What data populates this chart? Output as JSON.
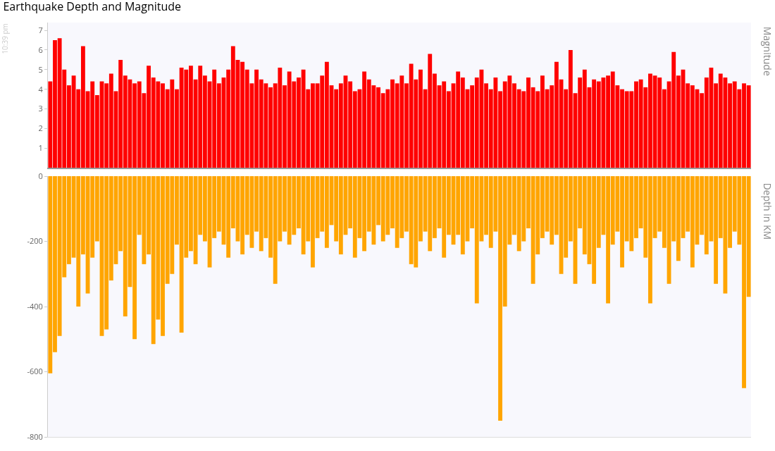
{
  "chart_data": [
    {
      "type": "bar",
      "title": "Earthquake Depth and Magnitude",
      "ylabel": "Magnitude",
      "annotations": [
        "10:39 pm"
      ],
      "tick_labels": "y",
      "grid": false,
      "categories": [
        null,
        null,
        null,
        null,
        null,
        null,
        null,
        null,
        null,
        null,
        null,
        null,
        null,
        null,
        null,
        null,
        null,
        null,
        null,
        null,
        null,
        null,
        null,
        null,
        null,
        null,
        null,
        null,
        null,
        null,
        null,
        null,
        null,
        null,
        null,
        null,
        null,
        null,
        null,
        null,
        null,
        null,
        null,
        null,
        null,
        null,
        null,
        null,
        null,
        null,
        null,
        null,
        null,
        null,
        null,
        null,
        null,
        null,
        null,
        null,
        null,
        null,
        null,
        null,
        null,
        null,
        null,
        null,
        null,
        null,
        null,
        null,
        null,
        null,
        null,
        null,
        null,
        null,
        null,
        null,
        null,
        null,
        null,
        null,
        null,
        null,
        null,
        null,
        null,
        null,
        null,
        null,
        null,
        null,
        null,
        null,
        null,
        null,
        null,
        null,
        null,
        null,
        null,
        null,
        null,
        null,
        null,
        null,
        null,
        null,
        null,
        null,
        null,
        null,
        null,
        null,
        null,
        null,
        null,
        null,
        null,
        null,
        null,
        null,
        null,
        null,
        null,
        null,
        null,
        null,
        null,
        null,
        null,
        null,
        null,
        null,
        null,
        null,
        null,
        null,
        null,
        null,
        null,
        null,
        null,
        null,
        null,
        null,
        null,
        null
      ],
      "series": [
        {
          "color": "#ff0000",
          "values": [
            4.4,
            6.5,
            6.6,
            5.0,
            4.2,
            4.7,
            4.0,
            6.2,
            3.9,
            4.4,
            3.7,
            4.4,
            4.3,
            4.8,
            3.9,
            5.5,
            4.7,
            4.5,
            4.3,
            4.4,
            3.8,
            5.2,
            4.6,
            4.4,
            4.3,
            4.0,
            4.5,
            4.0,
            5.1,
            5.0,
            5.2,
            4.5,
            5.2,
            4.7,
            4.4,
            5.0,
            4.3,
            4.6,
            5.0,
            6.2,
            5.5,
            5.4,
            5.0,
            4.3,
            5.0,
            4.5,
            4.3,
            4.1,
            4.3,
            5.1,
            4.2,
            4.9,
            4.4,
            4.6,
            5.0,
            4.0,
            4.3,
            4.3,
            4.7,
            5.4,
            4.2,
            4.0,
            4.3,
            4.7,
            4.4,
            3.9,
            4.0,
            4.9,
            4.5,
            4.2,
            4.1,
            3.8,
            4.0,
            4.5,
            4.3,
            4.7,
            4.3,
            5.3,
            4.5,
            5.0,
            4.0,
            5.8,
            4.8,
            4.2,
            4.4,
            3.9,
            4.3,
            4.9,
            4.6,
            4.0,
            4.2,
            4.6,
            5.0,
            4.3,
            4.0,
            4.6,
            3.9,
            4.4,
            4.7,
            4.3,
            4.0,
            3.9,
            4.6,
            4.1,
            3.9,
            4.7,
            4.0,
            4.2,
            5.4,
            4.5,
            4.0,
            6.0,
            3.8,
            4.6,
            5.0,
            4.1,
            4.5,
            4.4,
            4.6,
            4.7,
            4.9,
            4.2,
            4.0,
            3.9,
            3.9,
            4.4,
            4.5,
            4.1,
            4.8,
            4.7,
            4.6,
            4.0,
            4.4,
            5.9,
            4.7,
            5.0,
            4.3,
            4.2,
            4.0,
            3.8,
            4.6,
            5.1,
            4.3,
            4.8,
            4.6,
            4.3,
            4.4,
            4.0,
            4.3,
            4.2
          ]
        }
      ],
      "ylim": [
        0,
        7.4
      ],
      "yticks": [
        1,
        2,
        3,
        4,
        5,
        6,
        7
      ]
    },
    {
      "type": "bar",
      "ylabel": "Depth in KM",
      "tick_labels": "y",
      "grid": false,
      "categories": [
        null,
        null,
        null,
        null,
        null,
        null,
        null,
        null,
        null,
        null,
        null,
        null,
        null,
        null,
        null,
        null,
        null,
        null,
        null,
        null,
        null,
        null,
        null,
        null,
        null,
        null,
        null,
        null,
        null,
        null,
        null,
        null,
        null,
        null,
        null,
        null,
        null,
        null,
        null,
        null,
        null,
        null,
        null,
        null,
        null,
        null,
        null,
        null,
        null,
        null,
        null,
        null,
        null,
        null,
        null,
        null,
        null,
        null,
        null,
        null,
        null,
        null,
        null,
        null,
        null,
        null,
        null,
        null,
        null,
        null,
        null,
        null,
        null,
        null,
        null,
        null,
        null,
        null,
        null,
        null,
        null,
        null,
        null,
        null,
        null,
        null,
        null,
        null,
        null,
        null,
        null,
        null,
        null,
        null,
        null,
        null,
        null,
        null,
        null,
        null,
        null,
        null,
        null,
        null,
        null,
        null,
        null,
        null,
        null,
        null,
        null,
        null,
        null,
        null,
        null,
        null,
        null,
        null,
        null,
        null,
        null,
        null,
        null,
        null,
        null,
        null,
        null,
        null,
        null,
        null,
        null,
        null,
        null,
        null,
        null,
        null,
        null,
        null,
        null,
        null,
        null,
        null,
        null,
        null,
        null,
        null,
        null,
        null,
        null,
        null
      ],
      "series": [
        {
          "color": "#ffa500",
          "values": [
            -605,
            -540,
            -490,
            -310,
            -270,
            -250,
            -400,
            -240,
            -360,
            -250,
            -200,
            -490,
            -470,
            -320,
            -270,
            -230,
            -430,
            -340,
            -500,
            -180,
            -270,
            -240,
            -515,
            -440,
            -490,
            -330,
            -300,
            -210,
            -480,
            -250,
            -230,
            -270,
            -180,
            -200,
            -280,
            -190,
            -170,
            -210,
            -250,
            -160,
            -200,
            -240,
            -180,
            -220,
            -170,
            -230,
            -190,
            -250,
            -330,
            -200,
            -170,
            -210,
            -180,
            -160,
            -240,
            -200,
            -280,
            -190,
            -170,
            -220,
            -150,
            -200,
            -240,
            -180,
            -160,
            -250,
            -190,
            -230,
            -170,
            -210,
            -150,
            -200,
            -180,
            -160,
            -220,
            -190,
            -170,
            -270,
            -280,
            -200,
            -170,
            -230,
            -190,
            -160,
            -250,
            -180,
            -210,
            -180,
            -240,
            -200,
            -160,
            -390,
            -200,
            -180,
            -220,
            -170,
            -750,
            -400,
            -210,
            -180,
            -230,
            -200,
            -160,
            -330,
            -240,
            -190,
            -170,
            -210,
            -180,
            -300,
            -250,
            -200,
            -330,
            -160,
            -240,
            -270,
            -330,
            -220,
            -180,
            -390,
            -210,
            -170,
            -280,
            -200,
            -230,
            -190,
            -160,
            -250,
            -390,
            -190,
            -170,
            -220,
            -330,
            -200,
            -260,
            -190,
            -170,
            -280,
            -210,
            -180,
            -240,
            -200,
            -330,
            -190,
            -360,
            -220,
            -170,
            -210,
            -650,
            -370
          ]
        }
      ],
      "ylim": [
        -800,
        0
      ],
      "yticks": [
        0,
        -200,
        -400,
        -600,
        -800
      ]
    }
  ]
}
